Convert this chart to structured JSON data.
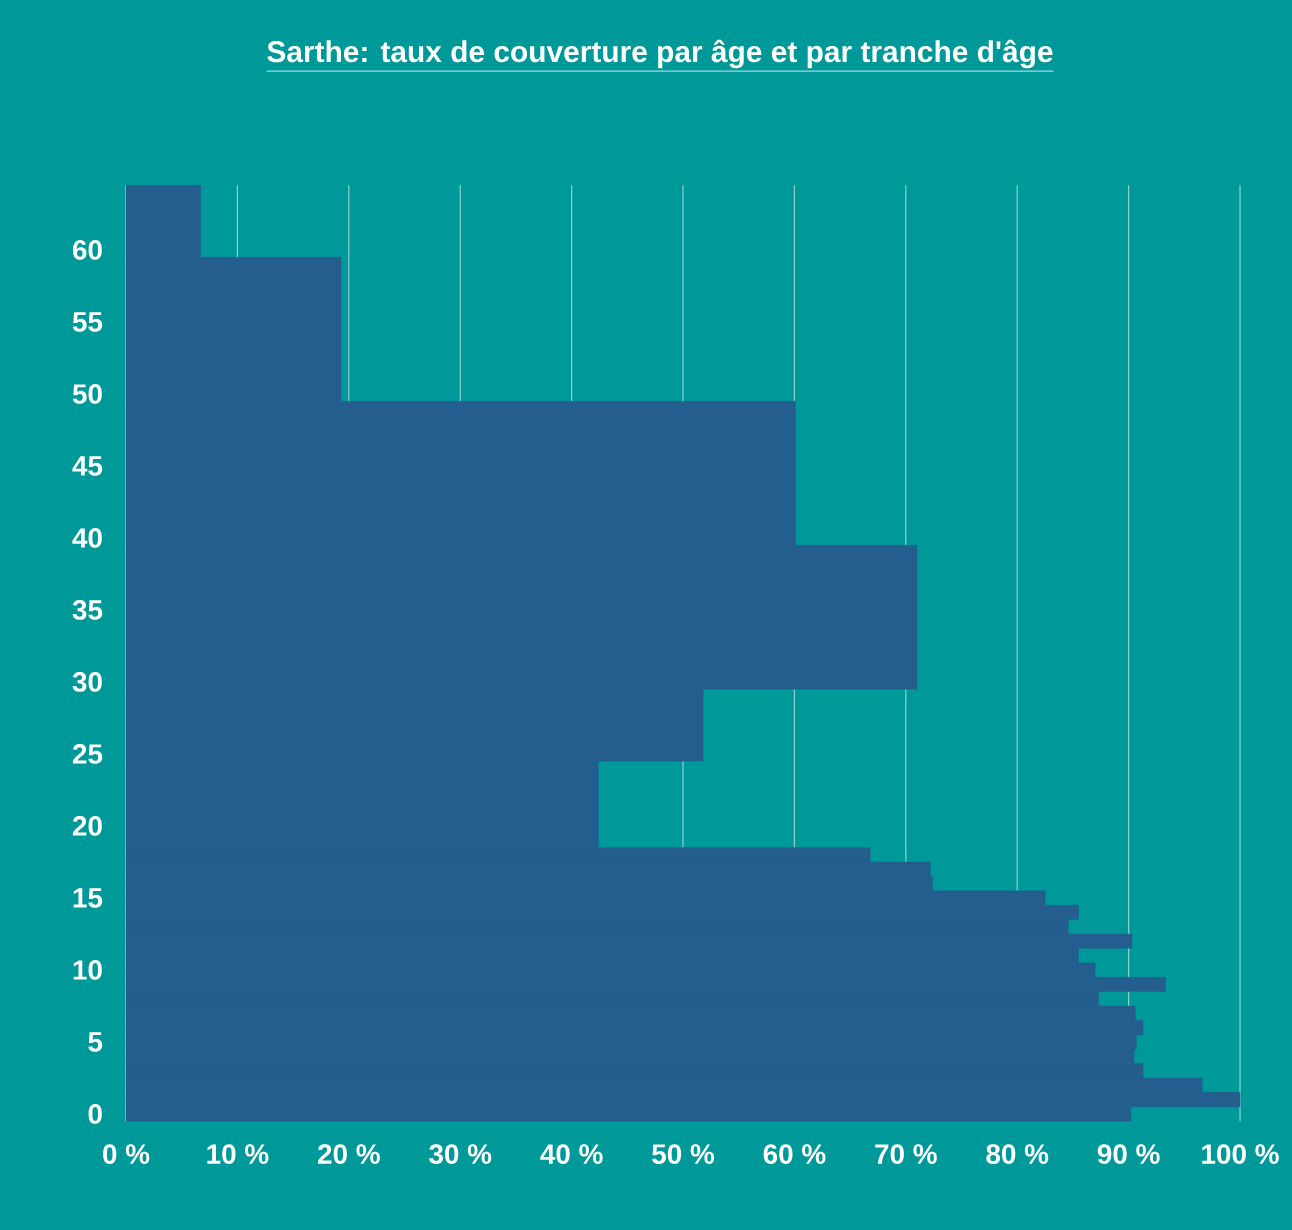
{
  "chart_data": {
    "type": "histogram",
    "orientation": "horizontal",
    "title": "Sarthe: taux de couverture par âge et par tranche d'âge",
    "bins": [
      -0.5,
      0.5,
      1.5,
      2.5,
      3.5,
      4.5,
      5.5,
      6.5,
      7.5,
      8.5,
      9.5,
      10.5,
      11.5,
      12.5,
      13.5,
      14.5,
      15.5,
      16.5,
      17.5,
      18.5,
      24.5,
      29.5,
      39.5,
      49.5,
      59.5,
      64.5
    ],
    "values": [
      90.2,
      100,
      96.6,
      91.3,
      90.5,
      90.7,
      91.3,
      90.6,
      87.3,
      93.3,
      87.0,
      85.5,
      90.3,
      84.6,
      85.5,
      82.5,
      72.4,
      72.2,
      66.8,
      42.4,
      51.8,
      71.0,
      60.1,
      19.3,
      6.7
    ],
    "color": "#245e8f",
    "xlim": [
      0,
      100
    ],
    "ylim": [
      -0.5,
      64.5
    ],
    "xticks": [
      {
        "value": 0,
        "label": "0 %"
      },
      {
        "value": 10,
        "label": "10 %"
      },
      {
        "value": 20,
        "label": "20 %"
      },
      {
        "value": 30,
        "label": "30 %"
      },
      {
        "value": 40,
        "label": "40 %"
      },
      {
        "value": 50,
        "label": "50 %"
      },
      {
        "value": 60,
        "label": "60 %"
      },
      {
        "value": 70,
        "label": "70 %"
      },
      {
        "value": 80,
        "label": "80 %"
      },
      {
        "value": 90,
        "label": "90 %"
      },
      {
        "value": 100,
        "label": "100 %"
      }
    ],
    "yticks": [
      0,
      5,
      10,
      15,
      20,
      25,
      30,
      35,
      40,
      45,
      50,
      55,
      60
    ],
    "grid": "x"
  }
}
